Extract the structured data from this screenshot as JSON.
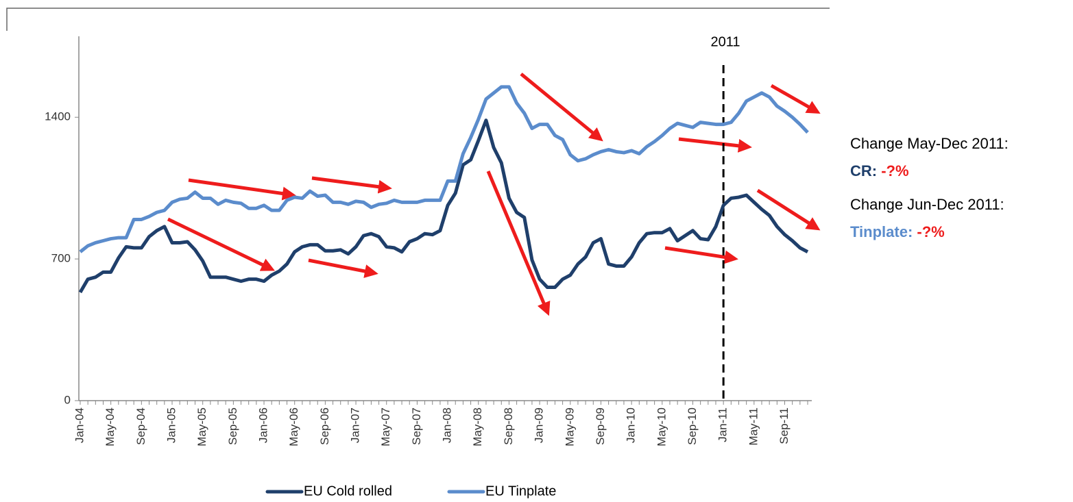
{
  "chart_data": {
    "type": "line",
    "categories": [
      "Jan-04",
      null,
      null,
      null,
      "May-04",
      null,
      null,
      null,
      "Sep-04",
      null,
      null,
      null,
      "Jan-05",
      null,
      null,
      null,
      "May-05",
      null,
      null,
      null,
      "Sep-05",
      null,
      null,
      null,
      "Jan-06",
      null,
      null,
      null,
      "May-06",
      null,
      null,
      null,
      "Sep-06",
      null,
      null,
      null,
      "Jan-07",
      null,
      null,
      null,
      "May-07",
      null,
      null,
      null,
      "Sep-07",
      null,
      null,
      null,
      "Jan-08",
      null,
      null,
      null,
      "May-08",
      null,
      null,
      null,
      "Sep-08",
      null,
      null,
      null,
      "Jan-09",
      null,
      null,
      null,
      "May-09",
      null,
      null,
      null,
      "Sep-09",
      null,
      null,
      null,
      "Jan-10",
      null,
      null,
      null,
      "May-10",
      null,
      null,
      null,
      "Sep-10",
      null,
      null,
      null,
      "Jan-11",
      null,
      null,
      null,
      "May-11",
      null,
      null,
      null,
      "Sep-11",
      null,
      null,
      null
    ],
    "series": [
      {
        "name": "EU Cold rolled",
        "color": "#1f3f6b",
        "values": [
          535,
          600,
          610,
          635,
          635,
          705,
          760,
          755,
          755,
          810,
          840,
          860,
          780,
          780,
          785,
          745,
          690,
          610,
          610,
          610,
          600,
          590,
          600,
          600,
          590,
          620,
          640,
          675,
          735,
          760,
          770,
          770,
          740,
          740,
          745,
          725,
          760,
          815,
          825,
          810,
          760,
          755,
          735,
          785,
          800,
          825,
          820,
          840,
          965,
          1025,
          1165,
          1190,
          1285,
          1385,
          1250,
          1175,
          1000,
          930,
          905,
          695,
          600,
          560,
          560,
          600,
          620,
          675,
          710,
          780,
          800,
          675,
          665,
          665,
          710,
          780,
          825,
          830,
          830,
          850,
          790,
          815,
          840,
          800,
          795,
          860,
          965,
          1000,
          1005,
          1015,
          980,
          945,
          915,
          860,
          820,
          790,
          755,
          735
        ]
      },
      {
        "name": "EU Tinplate",
        "color": "#5b8ccc",
        "values": [
          735,
          765,
          780,
          790,
          800,
          805,
          805,
          895,
          895,
          910,
          930,
          940,
          980,
          995,
          1000,
          1030,
          1000,
          1000,
          970,
          990,
          980,
          975,
          950,
          950,
          965,
          940,
          940,
          990,
          1005,
          1000,
          1035,
          1010,
          1015,
          980,
          980,
          970,
          985,
          980,
          955,
          970,
          975,
          990,
          980,
          980,
          980,
          990,
          990,
          990,
          1085,
          1085,
          1220,
          1300,
          1390,
          1490,
          1520,
          1550,
          1550,
          1470,
          1420,
          1345,
          1365,
          1365,
          1310,
          1290,
          1215,
          1185,
          1195,
          1215,
          1230,
          1240,
          1230,
          1225,
          1235,
          1220,
          1255,
          1280,
          1310,
          1345,
          1370,
          1360,
          1350,
          1375,
          1370,
          1365,
          1365,
          1375,
          1420,
          1480,
          1500,
          1520,
          1500,
          1455,
          1430,
          1400,
          1365,
          1325
        ]
      }
    ],
    "ylim": [
      0,
      1800
    ],
    "yticks": [
      0,
      700,
      1400
    ],
    "annotations": {
      "marker": "2011",
      "line1": "Change May-Dec 2011:",
      "cr_label": "CR:",
      "cr_value": "-?%",
      "line2": "Change Jun-Dec 2011:",
      "tin_label": "Tinplate:",
      "tin_value": "-?%"
    }
  }
}
